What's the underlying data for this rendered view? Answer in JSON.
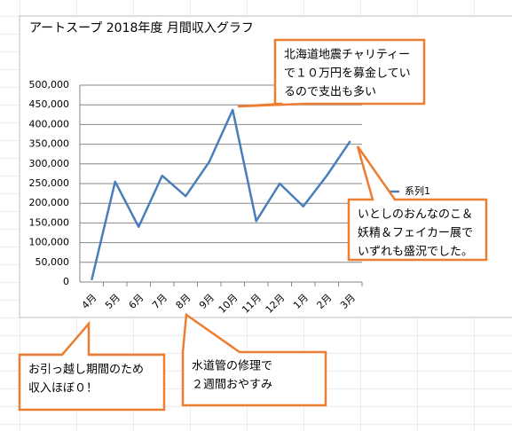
{
  "chart_data": {
    "type": "line",
    "title": "アートスープ  2018年度  月間収入グラフ",
    "categories": [
      "4月",
      "5月",
      "6月",
      "7月",
      "8月",
      "9月",
      "10月",
      "11月",
      "12月",
      "1月",
      "2月",
      "3月"
    ],
    "series": [
      {
        "name": "系列1",
        "color": "#4a7ebb",
        "values": [
          5000,
          255000,
          140000,
          270000,
          218000,
          305000,
          437000,
          155000,
          250000,
          192000,
          270000,
          358000
        ]
      }
    ],
    "ylim": [
      0,
      500000
    ],
    "yticks": [
      0,
      {
        "value": 50000,
        "label": "50,000"
      },
      {
        "value": 100000,
        "label": "100,000"
      },
      {
        "value": 150000,
        "label": "150,000"
      },
      {
        "value": 200000,
        "label": "200,000"
      },
      {
        "value": 250000,
        "label": "250,000"
      },
      {
        "value": 300000,
        "label": "300,000"
      },
      {
        "value": 350000,
        "label": "350,000"
      },
      {
        "value": 400000,
        "label": "400,000"
      },
      {
        "value": 450000,
        "label": "450,000"
      },
      {
        "value": 500000,
        "label": "500,000"
      }
    ],
    "grid": true,
    "legend": "right",
    "annotations": [
      {
        "lines": [
          "北海道地震チャリティー",
          "で１０万円を募金してい",
          "るので支出も多い"
        ]
      },
      {
        "lines": [
          "いとしのおんなのこ＆",
          "妖精＆フェイカー展で",
          "いずれも盛況でした。"
        ]
      },
      {
        "lines": [
          "お引っ越し期間のため",
          "収入ほぼ０！"
        ]
      },
      {
        "lines": [
          "水道管の修理で",
          "２週間おやすみ"
        ]
      }
    ]
  }
}
